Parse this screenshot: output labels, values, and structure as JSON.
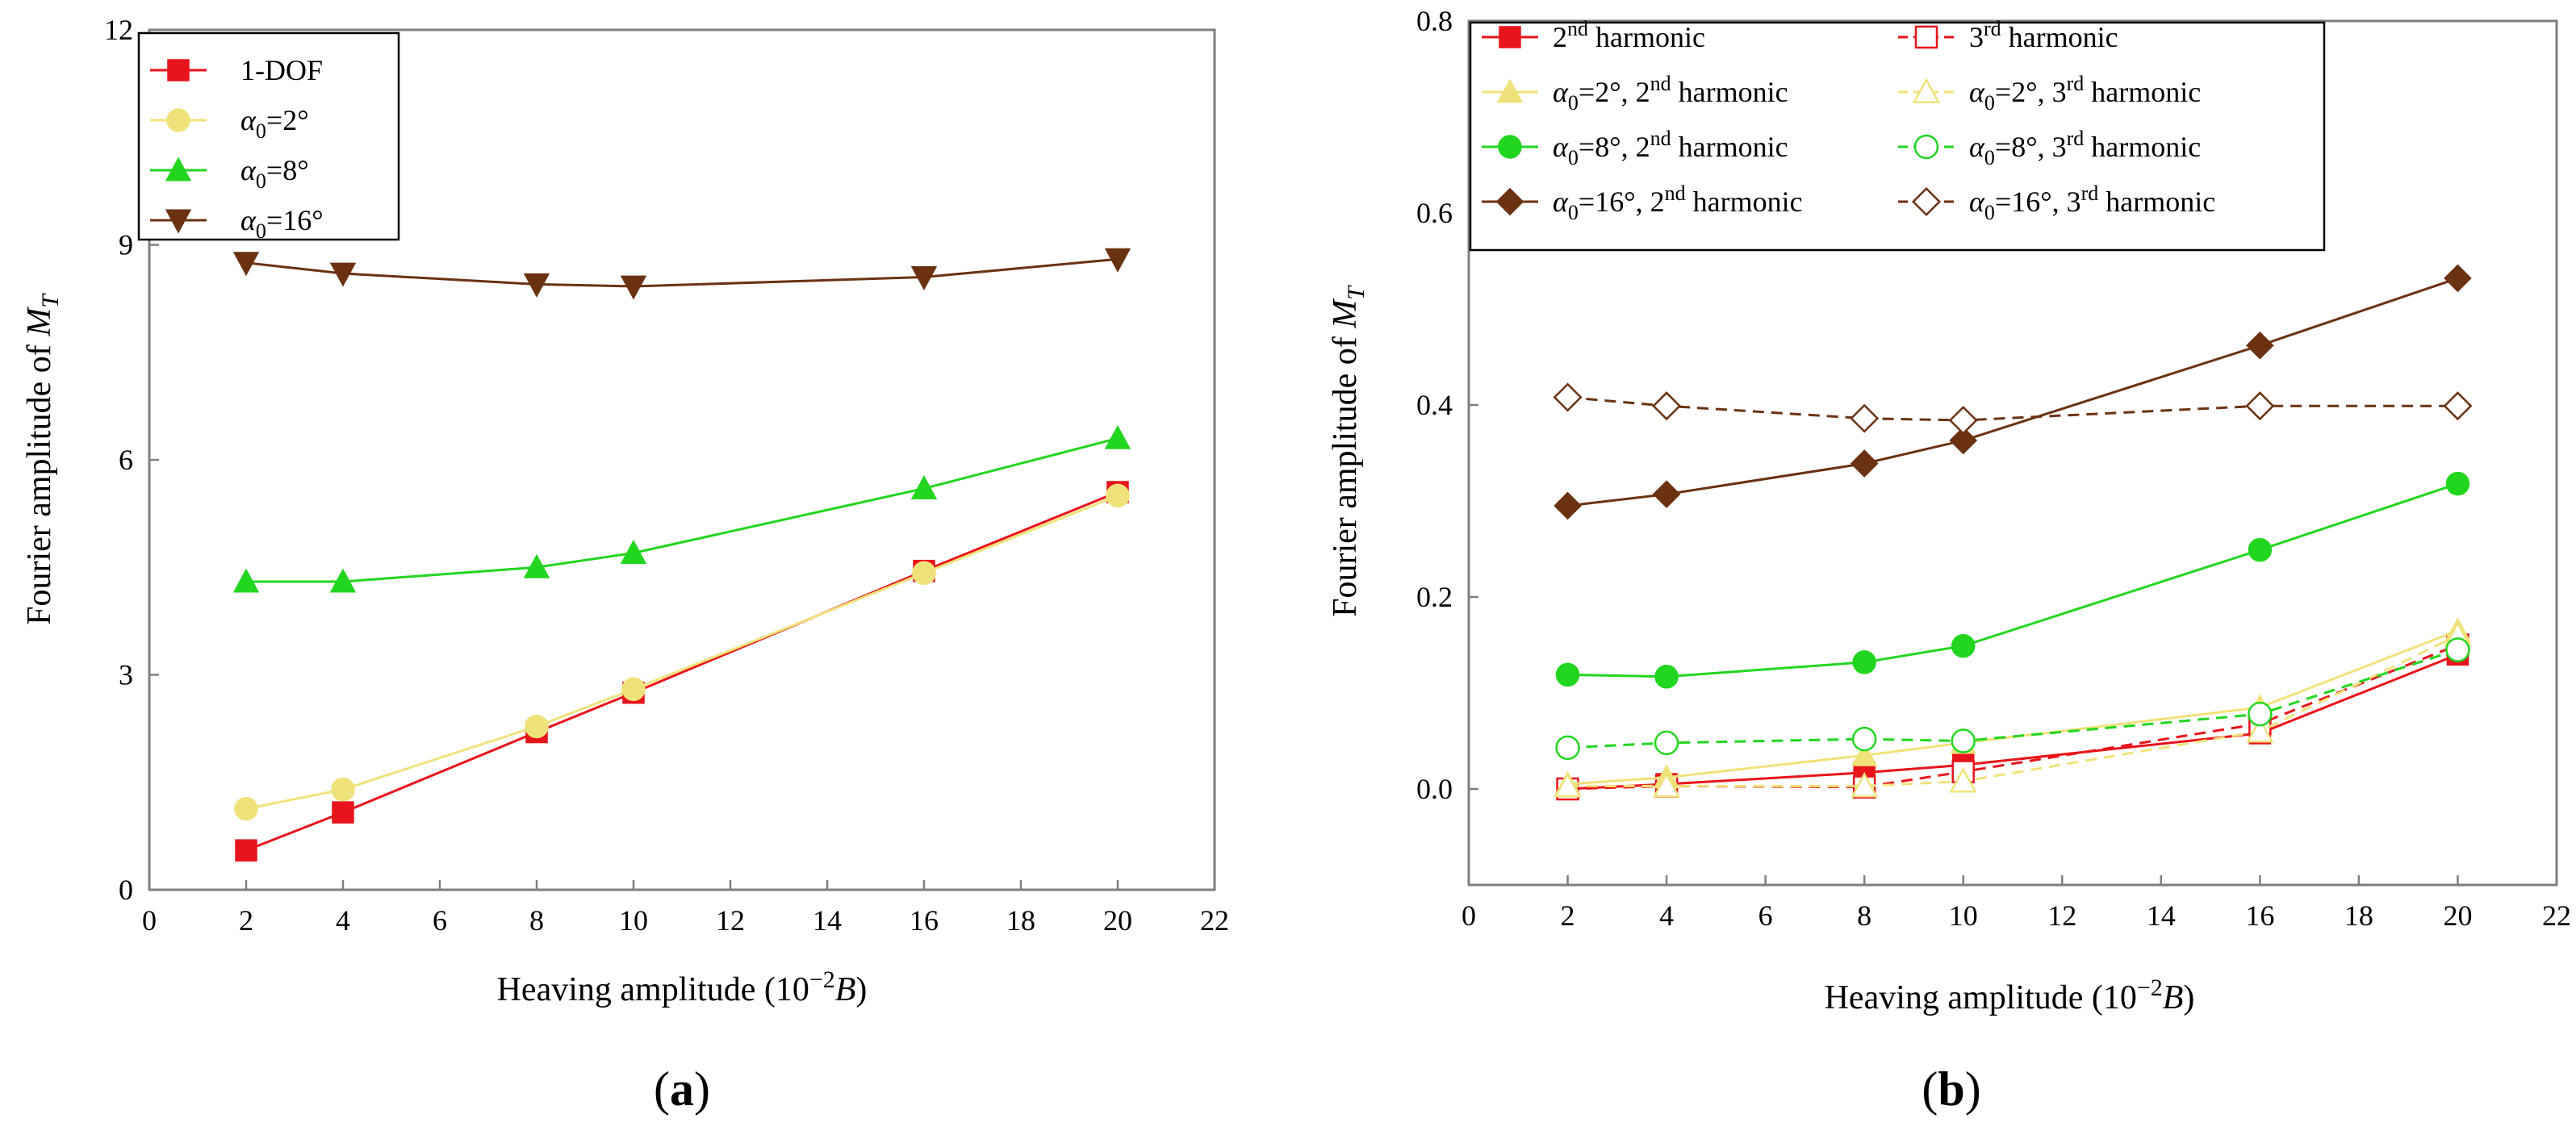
{
  "chart_data": [
    {
      "type": "line",
      "panel_label": "a",
      "xlabel": "Heaving amplitude (10",
      "xlabel_exp": "−2",
      "xlabel_unit": "B",
      "ylabel": "Fourier amplitude of ",
      "ylabel_sym": "M",
      "ylabel_sub": "T",
      "xlim": [
        0,
        22
      ],
      "ylim": [
        0,
        12
      ],
      "xticks": [
        0,
        2,
        4,
        6,
        8,
        10,
        12,
        14,
        16,
        18,
        20,
        22
      ],
      "xtick_labels": [
        "0",
        "2",
        "4",
        "6",
        "8",
        "10",
        "12",
        "14",
        "16",
        "18",
        "20",
        "22"
      ],
      "yticks": [
        0,
        3,
        6,
        9,
        12
      ],
      "ytick_labels": [
        "0",
        "3",
        "6",
        "9",
        "12"
      ],
      "legend": "top-left",
      "series": [
        {
          "name": "1-DOF",
          "label": {
            "text": "1-DOF"
          },
          "color": "#e8141b",
          "marker": "square",
          "filled": true,
          "dashed": false,
          "x": [
            2,
            4,
            8,
            10,
            16,
            20
          ],
          "values": [
            0.55,
            1.08,
            2.2,
            2.75,
            4.45,
            5.55
          ]
        },
        {
          "name": "α0=2°",
          "label": {
            "sym": "α",
            "sub": "0",
            "rest": "=2°"
          },
          "color": "#f0e27a",
          "marker": "circle",
          "filled": true,
          "dashed": false,
          "x": [
            2,
            4,
            8,
            10,
            16,
            20
          ],
          "values": [
            1.13,
            1.4,
            2.28,
            2.8,
            4.42,
            5.5
          ]
        },
        {
          "name": "α0=8°",
          "label": {
            "sym": "α",
            "sub": "0",
            "rest": "=8°"
          },
          "color": "#22d61f",
          "marker": "triangle-up",
          "filled": true,
          "dashed": false,
          "x": [
            2,
            4,
            8,
            10,
            16,
            20
          ],
          "values": [
            4.3,
            4.3,
            4.5,
            4.7,
            5.6,
            6.3
          ]
        },
        {
          "name": "α0=16°",
          "label": {
            "sym": "α",
            "sub": "0",
            "rest": "=16°"
          },
          "color": "#6b3212",
          "marker": "triangle-down",
          "filled": true,
          "dashed": false,
          "x": [
            2,
            4,
            8,
            10,
            16,
            20
          ],
          "values": [
            8.75,
            8.6,
            8.45,
            8.42,
            8.55,
            8.8
          ]
        }
      ]
    },
    {
      "type": "line",
      "panel_label": "b",
      "xlabel": "Heaving amplitude (10",
      "xlabel_exp": "−2",
      "xlabel_unit": "B",
      "ylabel": "Fourier amplitude of ",
      "ylabel_sym": "M",
      "ylabel_sub": "T",
      "xlim": [
        0,
        22
      ],
      "ylim": [
        -0.1,
        0.8
      ],
      "xticks": [
        0,
        2,
        4,
        6,
        8,
        10,
        12,
        14,
        16,
        18,
        20,
        22
      ],
      "xtick_labels": [
        "0",
        "2",
        "4",
        "6",
        "8",
        "10",
        "12",
        "14",
        "16",
        "18",
        "20",
        "22"
      ],
      "yticks": [
        0.0,
        0.2,
        0.4,
        0.6,
        0.8
      ],
      "ytick_labels": [
        "0.0",
        "0.2",
        "0.4",
        "0.6",
        "0.8"
      ],
      "legend": "top-left",
      "series": [
        {
          "name": "2nd harmonic",
          "label": {
            "pre": "2",
            "sup": "nd",
            "rest": " harmonic"
          },
          "color": "#e8141b",
          "marker": "square",
          "filled": true,
          "dashed": false,
          "x": [
            2,
            4,
            8,
            10,
            16,
            20
          ],
          "values": [
            0.0,
            0.005,
            0.017,
            0.025,
            0.058,
            0.14
          ]
        },
        {
          "name": "3rd harmonic",
          "label": {
            "pre": "3",
            "sup": "rd",
            "rest": " harmonic"
          },
          "color": "#e8141b",
          "marker": "square",
          "filled": false,
          "dashed": true,
          "x": [
            2,
            4,
            8,
            10,
            16,
            20
          ],
          "values": [
            0.0,
            0.003,
            0.002,
            0.018,
            0.068,
            0.15
          ]
        },
        {
          "name": "α0=2°, 2nd harmonic",
          "label": {
            "sym": "α",
            "sub": "0",
            "mid": "=2°, ",
            "pre": "2",
            "sup": "nd",
            "rest": " harmonic"
          },
          "color": "#f0e27a",
          "marker": "triangle-up",
          "filled": true,
          "dashed": false,
          "x": [
            2,
            4,
            8,
            10,
            16,
            20
          ],
          "values": [
            0.005,
            0.012,
            0.035,
            0.048,
            0.085,
            0.165
          ]
        },
        {
          "name": "α0=2°, 3rd harmonic",
          "label": {
            "sym": "α",
            "sub": "0",
            "mid": "=2°, ",
            "pre": "3",
            "sup": "rd",
            "rest": " harmonic"
          },
          "color": "#f0e27a",
          "marker": "triangle-up",
          "filled": false,
          "dashed": true,
          "x": [
            2,
            4,
            8,
            10,
            16,
            20
          ],
          "values": [
            0.003,
            0.003,
            0.003,
            0.008,
            0.06,
            0.16
          ]
        },
        {
          "name": "α0=8°, 2nd harmonic",
          "label": {
            "sym": "α",
            "sub": "0",
            "mid": "=8°, ",
            "pre": "2",
            "sup": "nd",
            "rest": " harmonic"
          },
          "color": "#22d61f",
          "marker": "circle",
          "filled": true,
          "dashed": false,
          "x": [
            2,
            4,
            8,
            10,
            16,
            20
          ],
          "values": [
            0.119,
            0.117,
            0.132,
            0.149,
            0.249,
            0.318
          ]
        },
        {
          "name": "α0=8°, 3rd harmonic",
          "label": {
            "sym": "α",
            "sub": "0",
            "mid": "=8°, ",
            "pre": "3",
            "sup": "rd",
            "rest": " harmonic"
          },
          "color": "#22d61f",
          "marker": "circle",
          "filled": false,
          "dashed": true,
          "x": [
            2,
            4,
            8,
            10,
            16,
            20
          ],
          "values": [
            0.043,
            0.048,
            0.052,
            0.05,
            0.078,
            0.145
          ]
        },
        {
          "name": "α0=16°, 2nd harmonic",
          "label": {
            "sym": "α",
            "sub": "0",
            "mid": "=16°, ",
            "pre": "2",
            "sup": "nd",
            "rest": " harmonic"
          },
          "color": "#6b3212",
          "marker": "diamond",
          "filled": true,
          "dashed": false,
          "x": [
            2,
            4,
            8,
            10,
            16,
            20
          ],
          "values": [
            0.295,
            0.307,
            0.339,
            0.363,
            0.462,
            0.532
          ]
        },
        {
          "name": "α0=16°, 3rd harmonic",
          "label": {
            "sym": "α",
            "sub": "0",
            "mid": "=16°, ",
            "pre": "3",
            "sup": "rd",
            "rest": " harmonic"
          },
          "color": "#6b3212",
          "marker": "diamond",
          "filled": false,
          "dashed": true,
          "x": [
            2,
            4,
            8,
            10,
            16,
            20
          ],
          "values": [
            0.408,
            0.399,
            0.386,
            0.384,
            0.399,
            0.399
          ]
        }
      ]
    }
  ]
}
